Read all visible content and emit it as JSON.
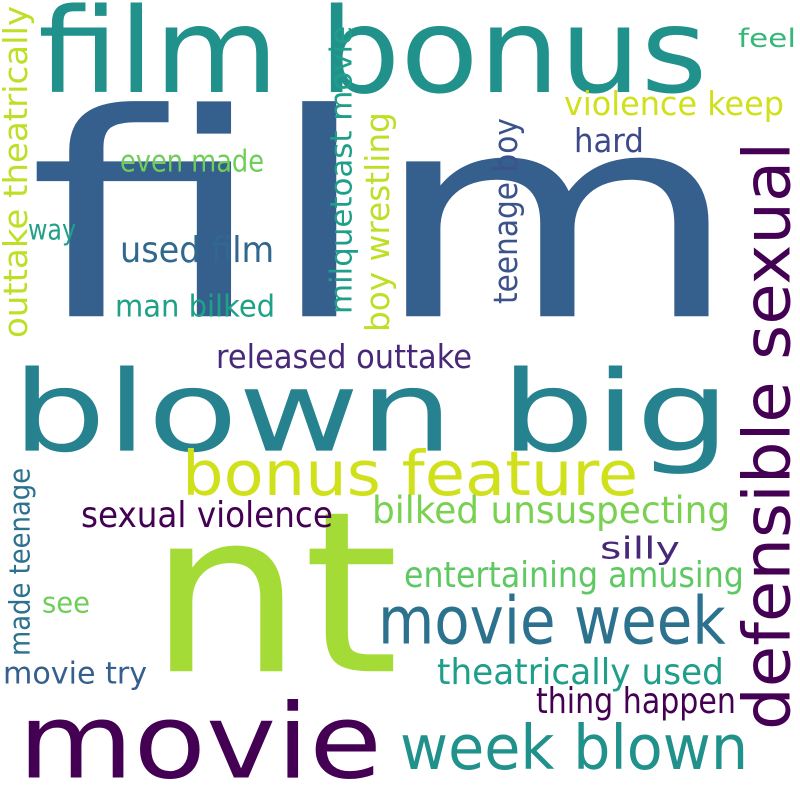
{
  "palette": {
    "dark_purple": "#440154",
    "indigo": "#3b528b",
    "slate_blue": "#31688e",
    "steel_blue": "#355f8d",
    "teal": "#21918c",
    "sea_green": "#1fa187",
    "green": "#35b779",
    "light_green": "#6ece58",
    "lime": "#a5db36",
    "yellow_green": "#d0e11c"
  },
  "words": [
    {
      "text": "film",
      "color": "#355f8d",
      "vertical": false
    },
    {
      "text": "nt",
      "color": "#a5db36",
      "vertical": false
    },
    {
      "text": "blown big",
      "color": "#26828e",
      "vertical": false
    },
    {
      "text": "film bonus",
      "color": "#21918c",
      "vertical": false
    },
    {
      "text": "movie",
      "color": "#440154",
      "vertical": false
    },
    {
      "text": "defensible sexual",
      "color": "#440154",
      "vertical": true
    },
    {
      "text": "week blown",
      "color": "#21918c",
      "vertical": false
    },
    {
      "text": "bonus feature",
      "color": "#d0e11c",
      "vertical": false
    },
    {
      "text": "movie week",
      "color": "#2c728e",
      "vertical": false
    },
    {
      "text": "bilked unsuspecting",
      "color": "#7ad151",
      "vertical": false
    },
    {
      "text": "entertaining amusing",
      "color": "#5ec962",
      "vertical": false
    },
    {
      "text": "theatrically used",
      "color": "#1f9e89",
      "vertical": false
    },
    {
      "text": "sexual violence",
      "color": "#440154",
      "vertical": false
    },
    {
      "text": "thing happen",
      "color": "#440154",
      "vertical": false
    },
    {
      "text": "violence keep",
      "color": "#d0e11c",
      "vertical": false
    },
    {
      "text": "outtake theatrically",
      "color": "#bddf26",
      "vertical": true
    },
    {
      "text": "milquetoast movie",
      "color": "#1f9e89",
      "vertical": true
    },
    {
      "text": "boy wrestling",
      "color": "#bddf26",
      "vertical": true
    },
    {
      "text": "teenage boy",
      "color": "#3b528b",
      "vertical": true
    },
    {
      "text": "made teenage",
      "color": "#2c728e",
      "vertical": true
    },
    {
      "text": "released outtake",
      "color": "#482878",
      "vertical": false
    },
    {
      "text": "used film",
      "color": "#31688e",
      "vertical": false
    },
    {
      "text": "man bilked",
      "color": "#1fa187",
      "vertical": false
    },
    {
      "text": "even made",
      "color": "#6ece58",
      "vertical": false
    },
    {
      "text": "hard",
      "color": "#3e4989",
      "vertical": false
    },
    {
      "text": "silly",
      "color": "#482878",
      "vertical": false
    },
    {
      "text": "movie try",
      "color": "#355f8d",
      "vertical": false
    },
    {
      "text": "way",
      "color": "#1fa187",
      "vertical": false
    },
    {
      "text": "see",
      "color": "#6ece58",
      "vertical": false
    },
    {
      "text": "feel",
      "color": "#35b779",
      "vertical": false
    }
  ]
}
